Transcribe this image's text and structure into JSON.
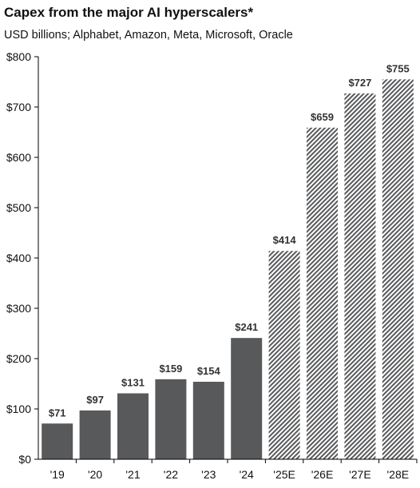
{
  "chart_data": {
    "type": "bar",
    "title": "Capex from the major AI hyperscalers*",
    "subtitle": "USD billions; Alphabet, Amazon, Meta, Microsoft, Oracle",
    "xlabel": "",
    "ylabel": "",
    "ylim": [
      0,
      800
    ],
    "yticks": [
      0,
      100,
      200,
      300,
      400,
      500,
      600,
      700,
      800
    ],
    "ytick_labels": [
      "$0",
      "$100",
      "$200",
      "$300",
      "$400",
      "$500",
      "$600",
      "$700",
      "$800"
    ],
    "categories": [
      "'19",
      "'20",
      "'21",
      "'22",
      "'23",
      "'24",
      "'25E",
      "'26E",
      "'27E",
      "'28E"
    ],
    "values": [
      71,
      97,
      131,
      159,
      154,
      241,
      414,
      659,
      727,
      755
    ],
    "data_labels": [
      "$71",
      "$97",
      "$131",
      "$159",
      "$154",
      "$241",
      "$414",
      "$659",
      "$727",
      "$755"
    ],
    "estimated": [
      false,
      false,
      false,
      false,
      false,
      false,
      true,
      true,
      true,
      true
    ],
    "grid": false,
    "colors": {
      "actual": "#58595b",
      "estimate_stripe": "#58595b",
      "estimate_bg": "#ffffff",
      "axis": "#000000"
    }
  }
}
